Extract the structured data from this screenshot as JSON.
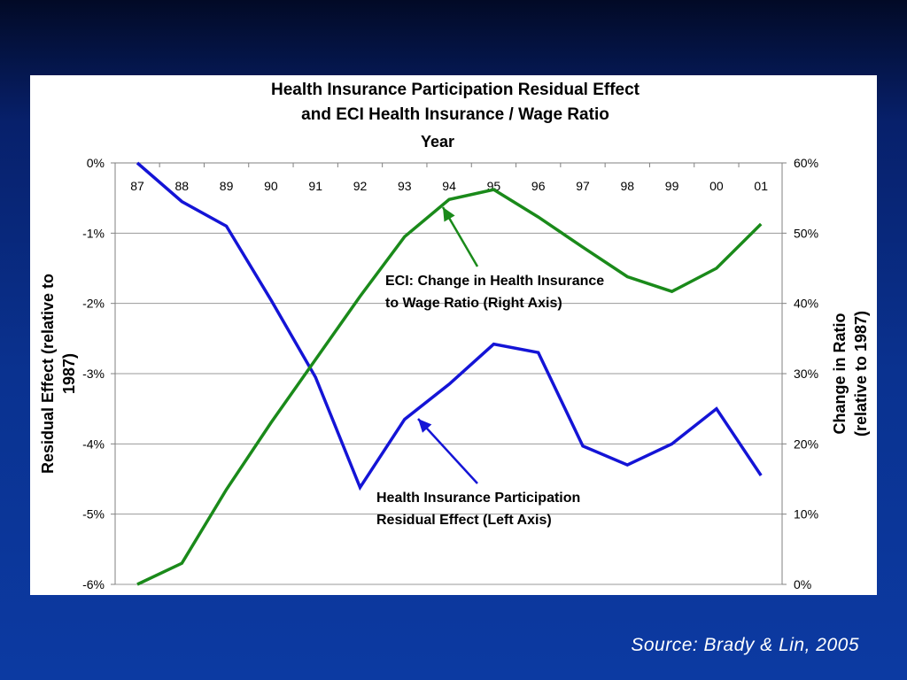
{
  "source": "Source: Brady & Lin, 2005",
  "colors": {
    "left_series": "#1414d6",
    "right_series": "#1a8a1a",
    "grid": "#9a9a9a"
  },
  "chart_data": {
    "type": "line",
    "title": [
      "Health Insurance Participation Residual Effect",
      "and ECI Health Insurance / Wage Ratio"
    ],
    "xlabel": "Year",
    "ylabel_left": [
      "Residual Effect (relative to",
      "1987)"
    ],
    "ylabel_right": [
      "Change in Ratio",
      "(relative to 1987)"
    ],
    "categories": [
      "87",
      "88",
      "89",
      "90",
      "91",
      "92",
      "93",
      "94",
      "95",
      "96",
      "97",
      "98",
      "99",
      "00",
      "01"
    ],
    "y_left": {
      "min": -6,
      "max": 0,
      "ticks": [
        0,
        -1,
        -2,
        -3,
        -4,
        -5,
        -6
      ],
      "tick_labels": [
        "0%",
        "-1%",
        "-2%",
        "-3%",
        "-4%",
        "-5%",
        "-6%"
      ]
    },
    "y_right": {
      "min": 0,
      "max": 60,
      "ticks": [
        60,
        50,
        40,
        30,
        20,
        10,
        0
      ],
      "tick_labels": [
        "60%",
        "50%",
        "40%",
        "30%",
        "20%",
        "10%",
        "0%"
      ]
    },
    "grid": true,
    "series": [
      {
        "name": "Health Insurance Participation Residual Effect (Left Axis)",
        "axis": "left",
        "values": [
          0.0,
          -0.55,
          -0.9,
          -1.95,
          -3.05,
          -4.62,
          -3.65,
          -3.15,
          -2.58,
          -2.7,
          -4.03,
          -4.3,
          -4.0,
          -3.5,
          -4.45
        ]
      },
      {
        "name": "ECI: Change in Health Insurance to Wage Ratio (Right Axis)",
        "axis": "right",
        "values": [
          0.0,
          3.0,
          13.5,
          23.0,
          32.0,
          41.0,
          49.5,
          54.8,
          56.2,
          52.3,
          48.0,
          43.8,
          41.7,
          45.0,
          51.3
        ]
      }
    ],
    "annotations": [
      {
        "text": [
          "ECI:  Change in  Health Insurance",
          "to Wage Ratio (Right Axis)"
        ],
        "points_to": {
          "series": 1,
          "x": "94"
        }
      },
      {
        "text": [
          "Health Insurance Participation",
          "Residual Effect (Left Axis)"
        ],
        "points_to": {
          "series": 0,
          "x": "93"
        }
      }
    ]
  }
}
